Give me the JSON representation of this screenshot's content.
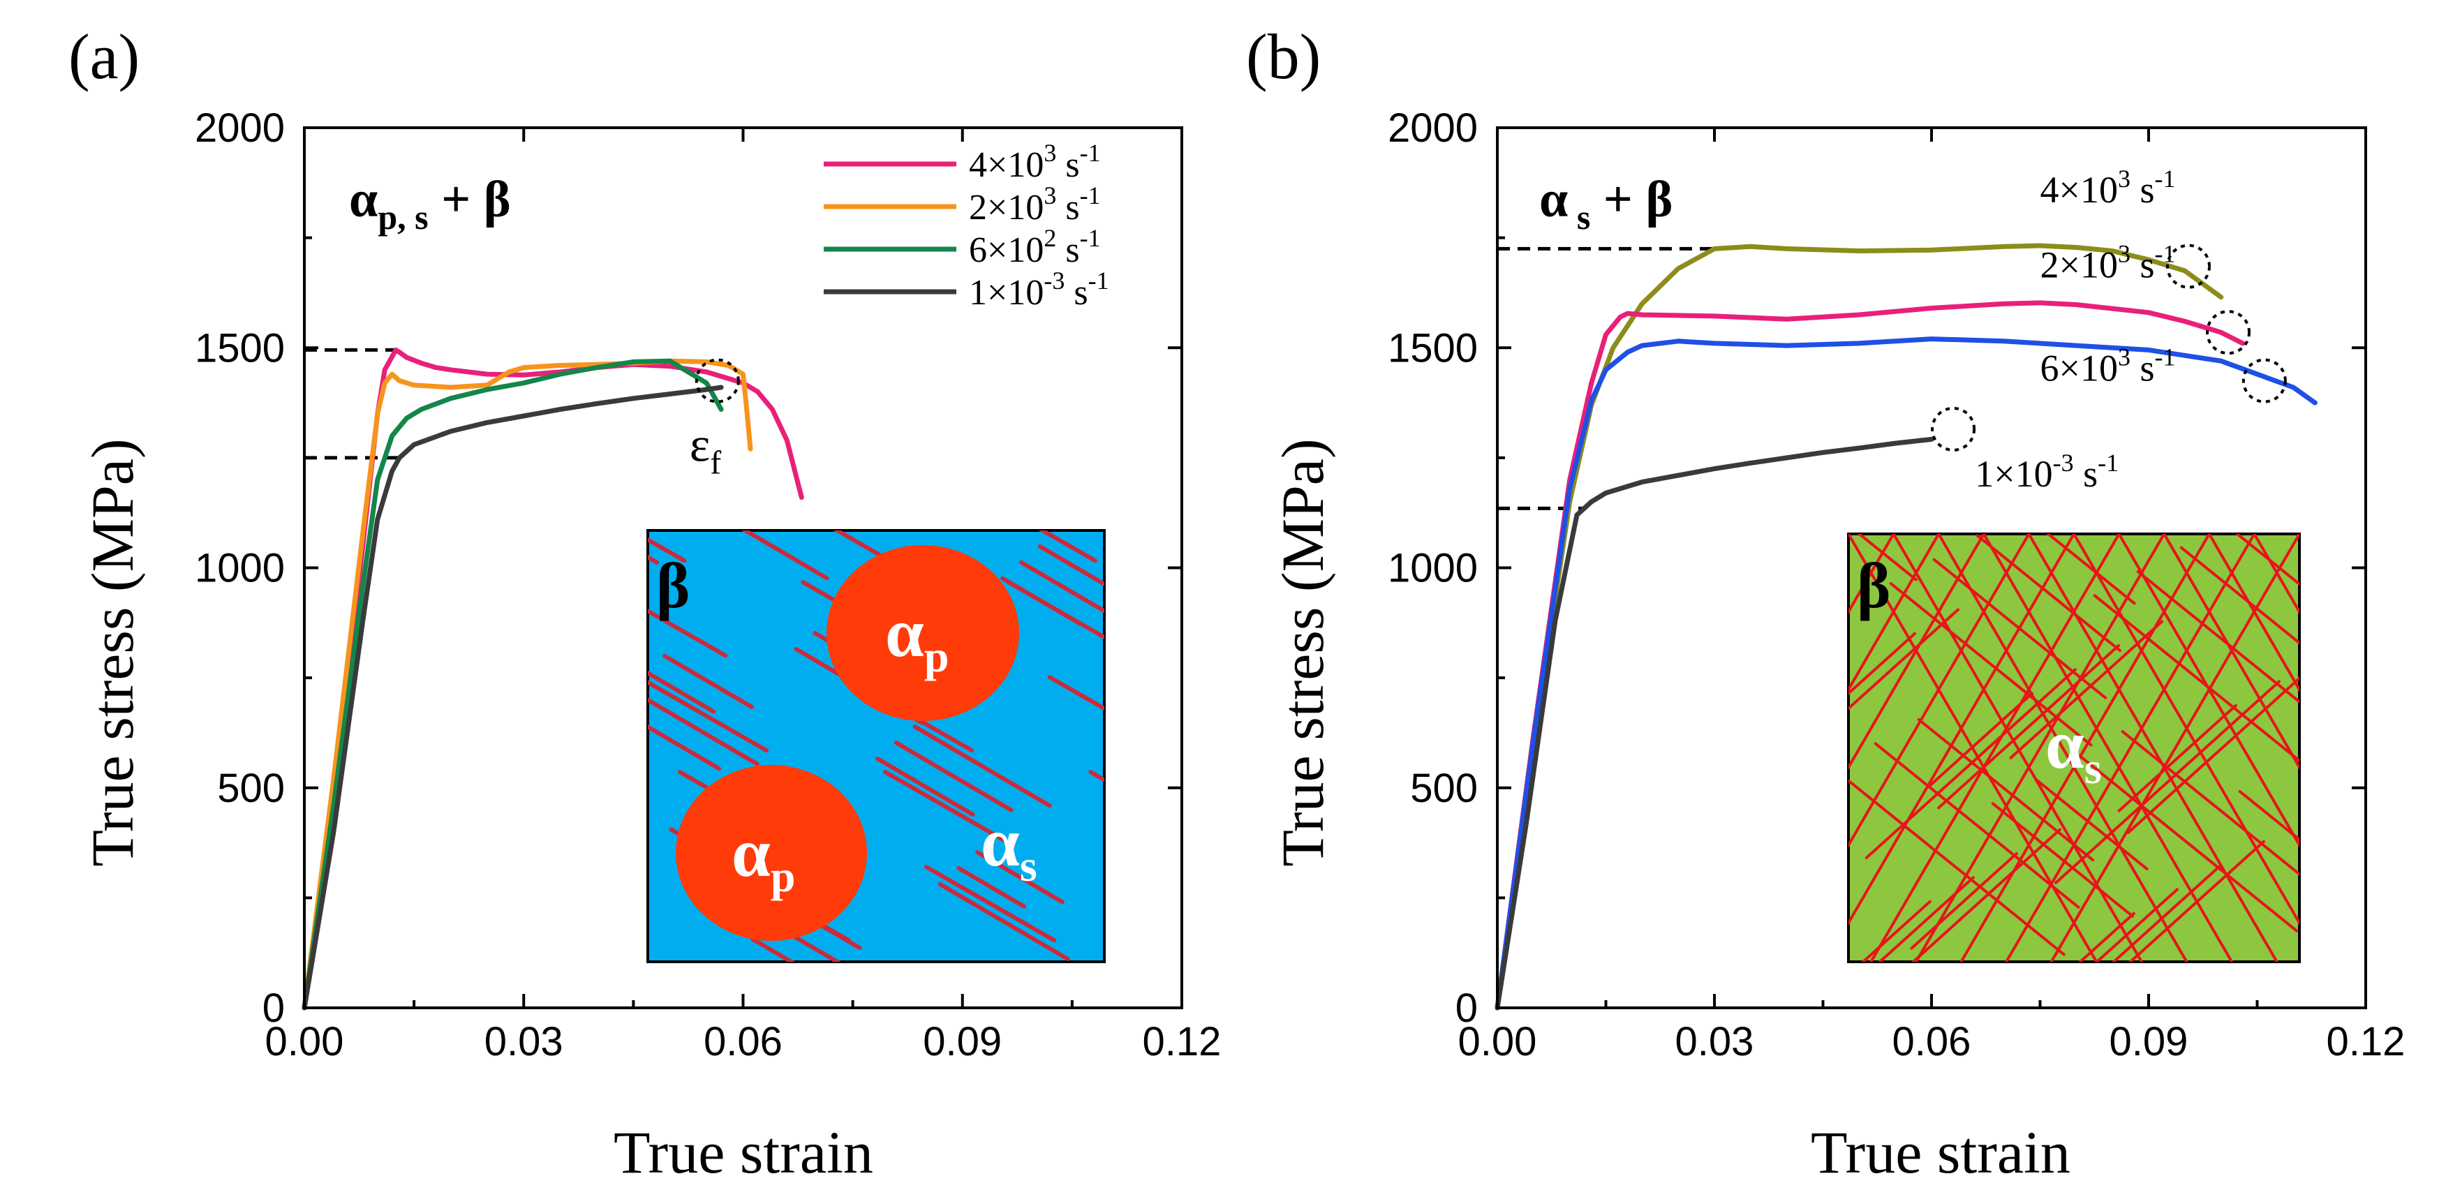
{
  "chart_data": [
    {
      "type": "line",
      "panel_label": "(a)",
      "phase_label": {
        "main": "α",
        "sub": "p, s",
        "rest": " + β"
      },
      "xlabel": "True strain",
      "ylabel": "True stress (MPa)",
      "xlim": [
        0,
        0.12
      ],
      "ylim": [
        0,
        2000
      ],
      "xticks": [
        "0.00",
        "0.03",
        "0.06",
        "0.09",
        "0.12"
      ],
      "yticks": [
        "0",
        "500",
        "1000",
        "1500",
        "2000"
      ],
      "legend_position": "top-right",
      "series": [
        {
          "name": "4×10³ s⁻¹",
          "legend": {
            "mantissa": "4×10",
            "exp": "3",
            "unit": " s",
            "uexp": "-1"
          },
          "color": "#e8207a",
          "x": [
            0,
            0.004,
            0.008,
            0.01,
            0.011,
            0.012,
            0.0125,
            0.013,
            0.014,
            0.016,
            0.018,
            0.02,
            0.025,
            0.03,
            0.035,
            0.04,
            0.045,
            0.05,
            0.055,
            0.058,
            0.06,
            0.062,
            0.064,
            0.066,
            0.068
          ],
          "y": [
            0,
            500,
            1050,
            1350,
            1450,
            1480,
            1495,
            1490,
            1478,
            1465,
            1455,
            1450,
            1440,
            1438,
            1445,
            1455,
            1462,
            1458,
            1445,
            1430,
            1420,
            1400,
            1360,
            1290,
            1160
          ]
        },
        {
          "name": "2×10³ s⁻¹",
          "legend": {
            "mantissa": "2×10",
            "exp": "3",
            "unit": " s",
            "uexp": "-1"
          },
          "color": "#f7941d",
          "x": [
            0,
            0.004,
            0.008,
            0.01,
            0.011,
            0.012,
            0.013,
            0.015,
            0.02,
            0.025,
            0.028,
            0.03,
            0.035,
            0.04,
            0.045,
            0.05,
            0.055,
            0.058,
            0.06,
            0.0605,
            0.061
          ],
          "y": [
            0,
            520,
            1080,
            1350,
            1420,
            1440,
            1425,
            1415,
            1410,
            1415,
            1445,
            1455,
            1460,
            1462,
            1465,
            1470,
            1468,
            1460,
            1440,
            1360,
            1270
          ]
        },
        {
          "name": "6×10² s⁻¹",
          "legend": {
            "mantissa": "6×10",
            "exp": "2",
            "unit": " s",
            "uexp": "-1"
          },
          "color": "#13864a",
          "x": [
            0,
            0.004,
            0.008,
            0.01,
            0.012,
            0.014,
            0.016,
            0.02,
            0.025,
            0.03,
            0.035,
            0.04,
            0.045,
            0.05,
            0.055,
            0.057
          ],
          "y": [
            0,
            460,
            960,
            1200,
            1300,
            1340,
            1360,
            1385,
            1405,
            1420,
            1440,
            1455,
            1468,
            1470,
            1420,
            1360
          ]
        },
        {
          "name": "1×10⁻³ s⁻¹",
          "legend": {
            "mantissa": "1×10",
            "exp": "-3",
            "unit": " s",
            "uexp": "-1"
          },
          "color": "#3a3a3a",
          "x": [
            0,
            0.004,
            0.008,
            0.01,
            0.012,
            0.013,
            0.015,
            0.02,
            0.025,
            0.03,
            0.035,
            0.04,
            0.045,
            0.05,
            0.055,
            0.057
          ],
          "y": [
            0,
            400,
            880,
            1110,
            1220,
            1250,
            1280,
            1310,
            1330,
            1345,
            1360,
            1373,
            1385,
            1395,
            1405,
            1410
          ]
        }
      ],
      "reference_lines": [
        1495,
        1250
      ],
      "fracture_marker": {
        "x": 0.0565,
        "y": 1425,
        "label": {
          "main": "ε",
          "sub": "f"
        }
      },
      "inset": {
        "background": "#00aeef",
        "matrix_label": "β",
        "grain_label": {
          "main": "α",
          "sub": "p"
        },
        "lath_label": {
          "main": "α",
          "sub": "s"
        }
      }
    },
    {
      "type": "line",
      "panel_label": "(b)",
      "phase_label": {
        "main": "α",
        "sub": " s",
        "rest": " + β"
      },
      "xlabel": "True strain",
      "ylabel": "True stress (MPa)",
      "xlim": [
        0,
        0.12
      ],
      "ylim": [
        0,
        2000
      ],
      "xticks": [
        "0.00",
        "0.03",
        "0.06",
        "0.09",
        "0.12"
      ],
      "yticks": [
        "0",
        "500",
        "1000",
        "1500",
        "2000"
      ],
      "series": [
        {
          "name": "4×10³ s⁻¹",
          "label": {
            "mantissa": "4×10",
            "exp": "3",
            "unit": " s",
            "uexp": "-1"
          },
          "color": "#8c8c1c",
          "x": [
            0,
            0.005,
            0.01,
            0.013,
            0.016,
            0.02,
            0.025,
            0.03,
            0.035,
            0.04,
            0.05,
            0.06,
            0.07,
            0.075,
            0.08,
            0.085,
            0.09,
            0.095,
            0.1
          ],
          "y": [
            0,
            600,
            1150,
            1370,
            1500,
            1600,
            1680,
            1725,
            1730,
            1725,
            1720,
            1722,
            1730,
            1732,
            1728,
            1720,
            1700,
            1675,
            1615
          ]
        },
        {
          "name": "2×10³ s⁻¹",
          "label": {
            "mantissa": "2×10",
            "exp": "3",
            "unit": " s",
            "uexp": "-1"
          },
          "color": "#e8207a",
          "x": [
            0,
            0.005,
            0.01,
            0.013,
            0.015,
            0.017,
            0.018,
            0.02,
            0.03,
            0.04,
            0.05,
            0.06,
            0.07,
            0.075,
            0.08,
            0.09,
            0.095,
            0.1,
            0.103
          ],
          "y": [
            0,
            620,
            1200,
            1420,
            1530,
            1570,
            1578,
            1575,
            1572,
            1565,
            1575,
            1590,
            1600,
            1602,
            1598,
            1580,
            1560,
            1535,
            1510
          ]
        },
        {
          "name": "6×10³ s⁻¹",
          "label": {
            "mantissa": "6×10",
            "exp": "3",
            "unit": " s",
            "uexp": "-1"
          },
          "color": "#1f50e6",
          "x": [
            0,
            0.005,
            0.01,
            0.013,
            0.015,
            0.018,
            0.02,
            0.025,
            0.03,
            0.04,
            0.05,
            0.06,
            0.07,
            0.08,
            0.09,
            0.1,
            0.105,
            0.11,
            0.113
          ],
          "y": [
            0,
            610,
            1180,
            1380,
            1450,
            1490,
            1505,
            1515,
            1510,
            1505,
            1510,
            1520,
            1515,
            1505,
            1495,
            1470,
            1440,
            1410,
            1375
          ]
        },
        {
          "name": "1×10⁻³ s⁻¹",
          "label": {
            "mantissa": "1×10",
            "exp": "-3",
            "unit": " s",
            "uexp": "-1"
          },
          "color": "#3a3a3a",
          "x": [
            0,
            0.004,
            0.008,
            0.011,
            0.013,
            0.015,
            0.018,
            0.02,
            0.025,
            0.03,
            0.035,
            0.04,
            0.045,
            0.05,
            0.055,
            0.06
          ],
          "y": [
            0,
            420,
            880,
            1120,
            1150,
            1170,
            1185,
            1195,
            1210,
            1225,
            1238,
            1250,
            1262,
            1272,
            1283,
            1292
          ]
        }
      ],
      "series_label_positions": [
        [
          0.075,
          1830
        ],
        [
          0.075,
          1660
        ],
        [
          0.075,
          1425
        ],
        [
          0.066,
          1185
        ]
      ],
      "reference_lines": [
        1725,
        1135
      ],
      "fracture_markers": [
        [
          0.0955,
          1685
        ],
        [
          0.101,
          1535
        ],
        [
          0.106,
          1425
        ],
        [
          0.063,
          1315
        ]
      ],
      "inset": {
        "background": "#8dc63f",
        "matrix_label": "β",
        "lath_label": {
          "main": "α",
          "sub": "s"
        }
      }
    }
  ]
}
